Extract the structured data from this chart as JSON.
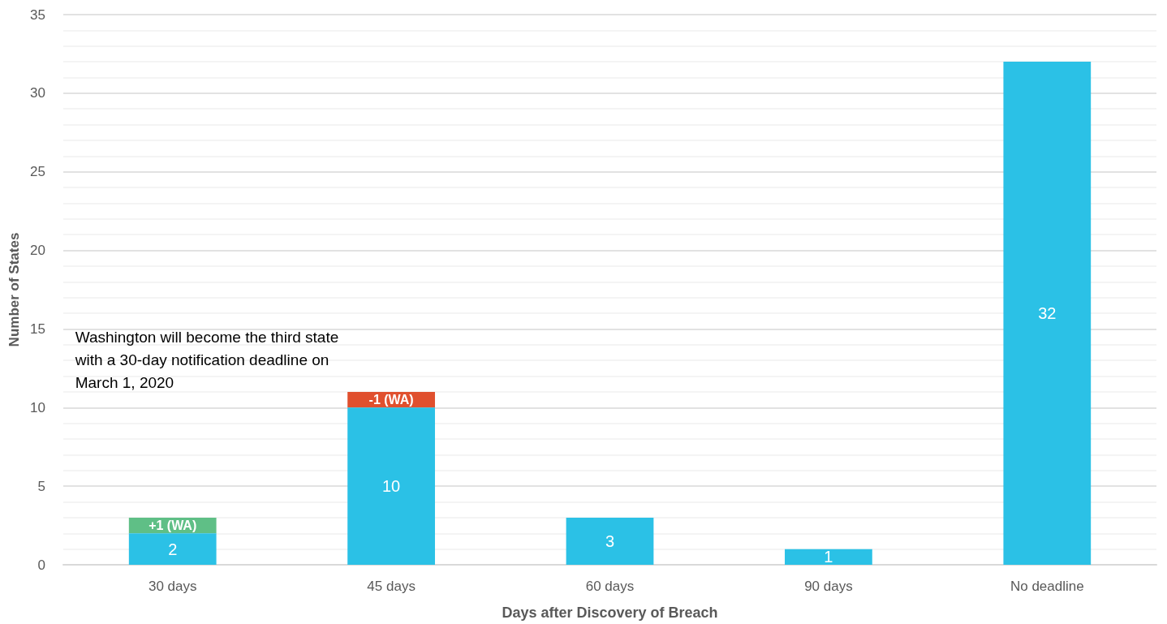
{
  "chart_data": {
    "type": "bar",
    "xlabel": "Days after Discovery of Breach",
    "ylabel": "Number of States",
    "categories": [
      "30 days",
      "45 days",
      "60 days",
      "90 days",
      "No deadline"
    ],
    "series": [
      {
        "color": "#2bc1e6",
        "values": [
          2,
          10,
          3,
          1,
          32
        ],
        "value_labels": [
          "2",
          "10",
          "3",
          "1",
          "32"
        ]
      },
      {
        "colors": [
          "#5fbf86",
          "#e0502e",
          null,
          null,
          null
        ],
        "base": [
          2,
          11,
          null,
          null,
          null
        ],
        "values": [
          1,
          -1,
          null,
          null,
          null
        ],
        "value_labels": [
          "+1 (WA)",
          "-1 (WA)",
          null,
          null,
          null
        ]
      }
    ],
    "ylim": [
      0,
      35
    ],
    "yticks": [
      0,
      5,
      10,
      15,
      20,
      25,
      30,
      35
    ],
    "grid": true,
    "annotations": [
      "Washington will become the third state with a 30-day notification deadline on March 1, 2020"
    ]
  }
}
